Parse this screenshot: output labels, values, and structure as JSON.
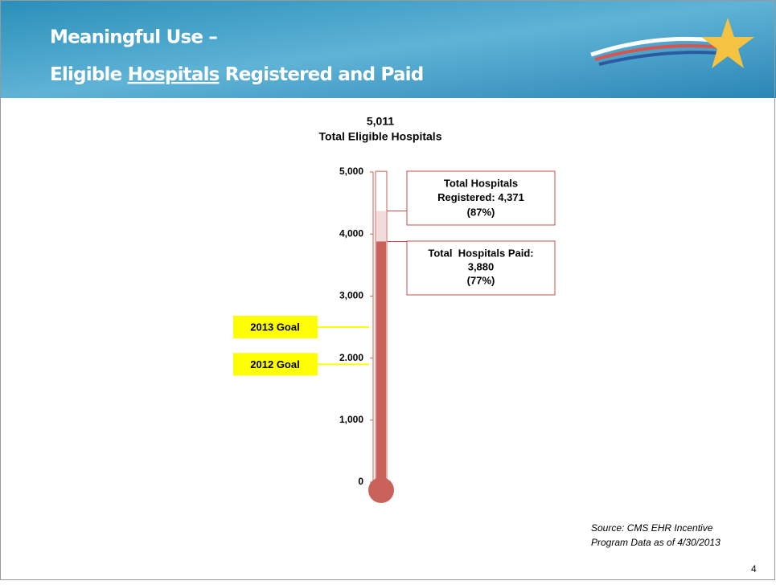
{
  "header": {
    "title_line1": "Meaningful Use –",
    "title_line2_start": "Eligible ",
    "title_line2_underlined": "Hospitals",
    "title_line2_end": " Registered and Paid"
  },
  "chart_data": {
    "type": "thermometer",
    "total": 5011,
    "total_label": "5,011",
    "total_caption": "Total Eligible Hospitals",
    "ylim": [
      0,
      5000
    ],
    "yticks": [
      0,
      {
        "value": 1000,
        "label": "1,000"
      },
      {
        "value": 2000,
        "label": "2.000"
      },
      {
        "value": 3000,
        "label": "3,000"
      },
      {
        "value": 4000,
        "label": "4,000"
      },
      {
        "value": 5000,
        "label": "5,000"
      }
    ],
    "series": [
      {
        "name": "Total Hospitals Registered:",
        "color": "#f2dcdb",
        "values": [
          4371
        ],
        "value_labels": [
          "4,371"
        ],
        "percent_labels": [
          "(87%)"
        ]
      },
      {
        "name": "Total  Hospitals Paid:",
        "color": "#c9625a",
        "values": [
          3880
        ],
        "value_labels": [
          "3,880"
        ],
        "percent_labels": [
          "(77%)"
        ]
      }
    ],
    "goals": [
      {
        "label": "2013 Goal",
        "value": 2500
      },
      {
        "label": "2012 Goal",
        "value": 1900
      }
    ],
    "goal_color": "#ffff00"
  },
  "footer": {
    "source_line1": "Source: CMS EHR Incentive",
    "source_line2": "Program Data as of 4/30/2013",
    "page_number": "4"
  }
}
